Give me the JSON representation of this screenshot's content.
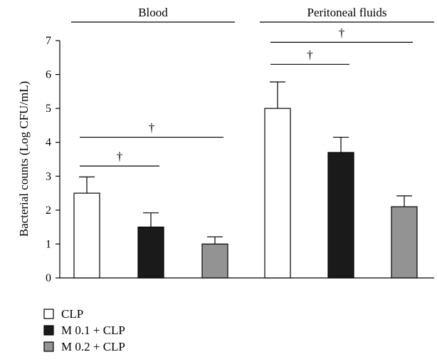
{
  "chart_data": {
    "type": "bar",
    "ylabel": "Bacterial counts (Log CFU/mL)",
    "ylim": [
      0,
      7
    ],
    "yticks": [
      0,
      1,
      2,
      3,
      4,
      5,
      6,
      7
    ],
    "grid": false,
    "legend_position": "bottom-left",
    "groups": [
      "Blood",
      "Peritoneal fluids"
    ],
    "series": [
      {
        "name": "CLP",
        "color": "#ffffff",
        "values": [
          2.5,
          5.0
        ],
        "errors": [
          0.48,
          0.78
        ]
      },
      {
        "name": "M 0.1 + CLP",
        "color": "#1a1a1a",
        "values": [
          1.5,
          3.7
        ],
        "errors": [
          0.42,
          0.45
        ]
      },
      {
        "name": "M 0.2 + CLP",
        "color": "#939393",
        "values": [
          1.0,
          2.1
        ],
        "errors": [
          0.21,
          0.32
        ]
      }
    ],
    "significance": [
      {
        "group": 0,
        "from": 0,
        "to": 1,
        "y": 3.3,
        "label": "†"
      },
      {
        "group": 0,
        "from": 0,
        "to": 2,
        "y": 4.15,
        "label": "†"
      },
      {
        "group": 1,
        "from": 0,
        "to": 1,
        "y": 6.3,
        "label": "†"
      },
      {
        "group": 1,
        "from": 0,
        "to": 2,
        "y": 6.95,
        "label": "†"
      }
    ]
  }
}
